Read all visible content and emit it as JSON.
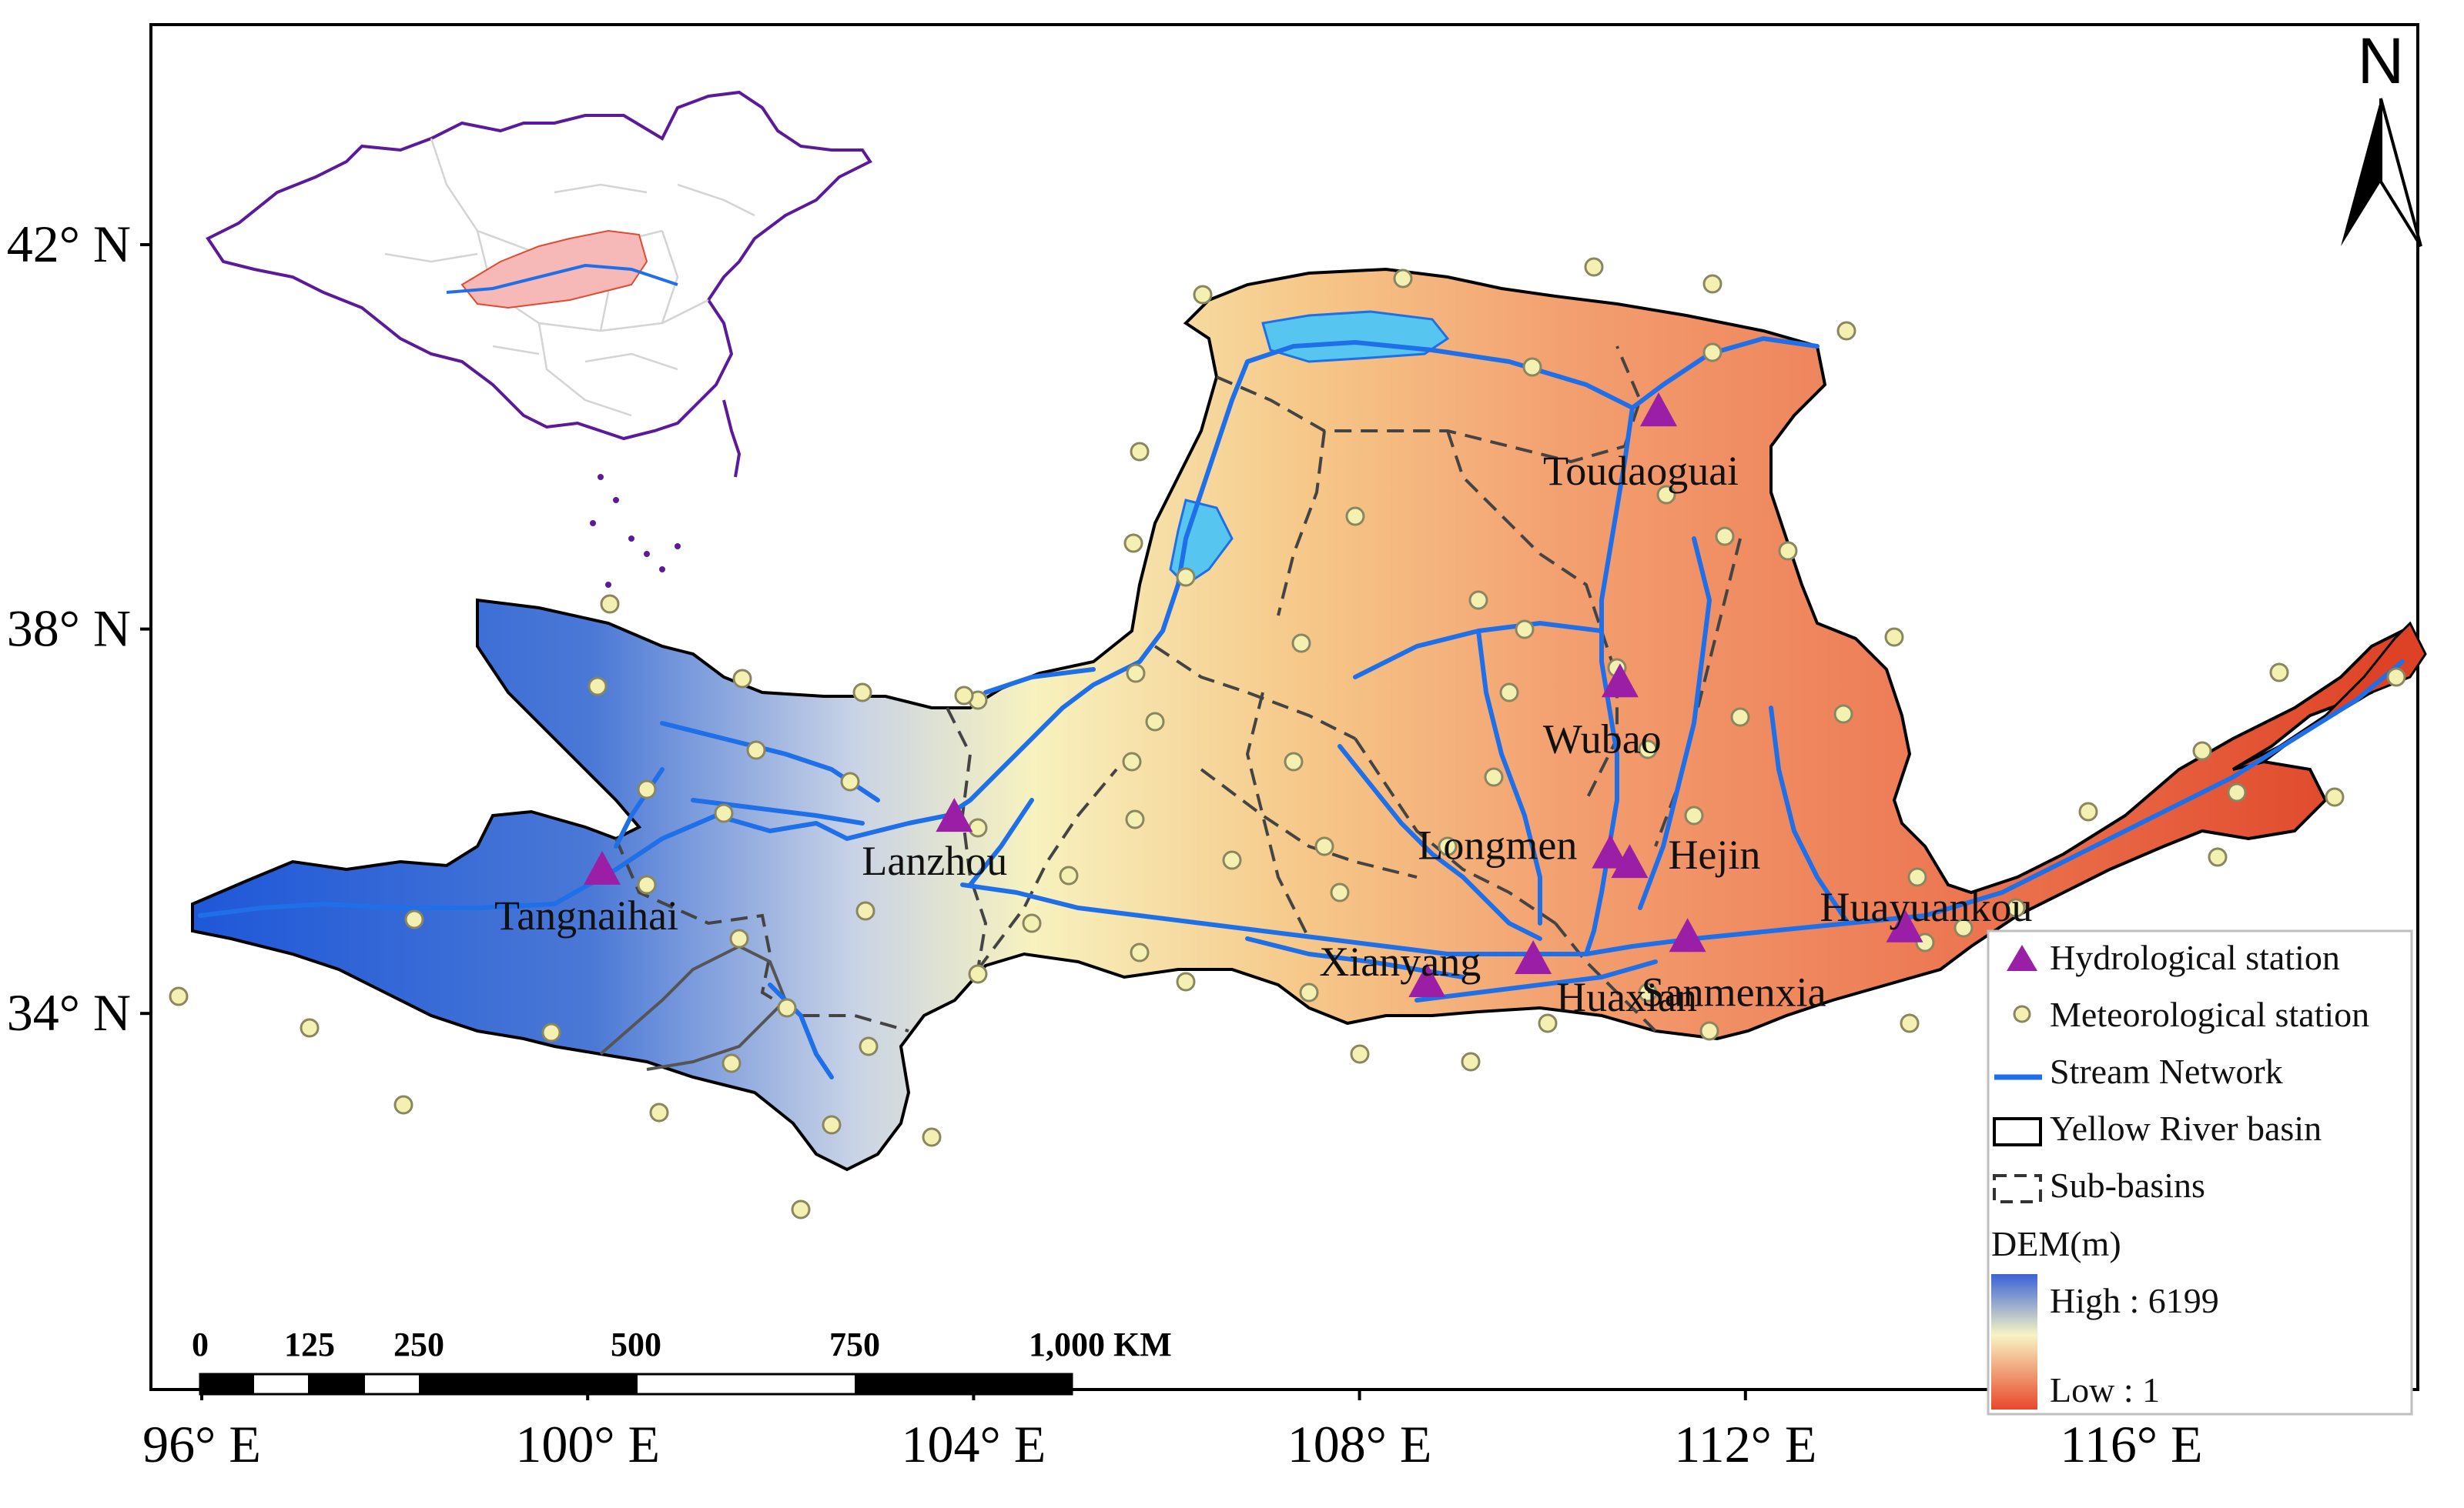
{
  "axes": {
    "x_ticks": [
      "96° E",
      "100° E",
      "104° E",
      "108° E",
      "112° E",
      "116° E"
    ],
    "y_ticks": [
      "42° N",
      "38° N",
      "34° N"
    ]
  },
  "north_arrow": {
    "label": "N",
    "icon": "north-arrow-icon"
  },
  "stations": [
    {
      "name": "Tangnaihai",
      "lon": 100.15,
      "lat": 35.5
    },
    {
      "name": "Lanzhou",
      "lon": 103.8,
      "lat": 36.05
    },
    {
      "name": "Toudaoguai",
      "lon": 111.1,
      "lat": 40.27
    },
    {
      "name": "Wubao",
      "lon": 110.7,
      "lat": 37.45
    },
    {
      "name": "Longmen",
      "lon": 110.6,
      "lat": 35.67
    },
    {
      "name": "Hejin",
      "lon": 110.8,
      "lat": 35.57
    },
    {
      "name": "Huayuankou",
      "lon": 113.65,
      "lat": 34.9
    },
    {
      "name": "Sanmenxia",
      "lon": 111.4,
      "lat": 34.8
    },
    {
      "name": "Xianyang",
      "lon": 108.7,
      "lat": 34.33
    },
    {
      "name": "Huaxian",
      "lon": 109.8,
      "lat": 34.57
    }
  ],
  "legend": {
    "items": [
      {
        "label": "Hydrological station",
        "icon": "purple-triangle-icon"
      },
      {
        "label": "Meteorological station",
        "icon": "yellow-dot-icon"
      },
      {
        "label": "Stream Network",
        "icon": "blue-line-icon"
      },
      {
        "label": "Yellow River basin",
        "icon": "black-box-icon"
      },
      {
        "label": "Sub-basins",
        "icon": "dashed-box-icon"
      }
    ],
    "dem_title": "DEM(m)",
    "dem_high": "High : 6199",
    "dem_low": "Low : 1"
  },
  "scale_bar": {
    "labels": [
      "0",
      "125",
      "250",
      "500",
      "750",
      "1,000 KM"
    ]
  },
  "colors": {
    "dem_high": "#2a5fd9",
    "dem_mid": "#f8f5b8",
    "dem_low": "#e04a2e",
    "stream": "#1e6fe8",
    "hydro_station": "#9a1fa6",
    "met_station": "#f3f0b2",
    "inset_border": "#5a1a9a",
    "inset_highlight": "#f7b8b8"
  }
}
